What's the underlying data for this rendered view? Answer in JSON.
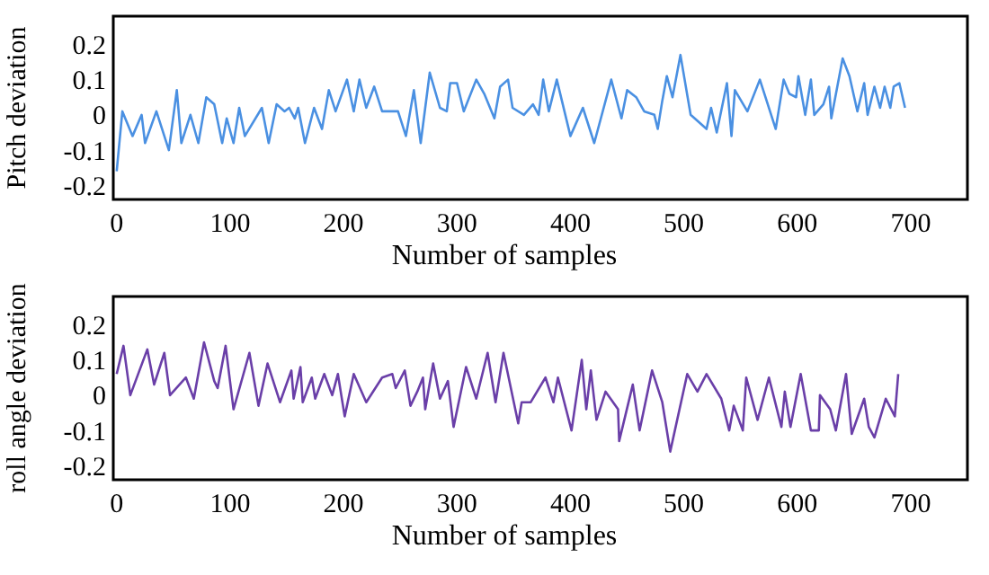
{
  "chart_data": [
    {
      "type": "line",
      "xlabel": "Number of samples",
      "ylabel": "Pitch deviation",
      "xlim": [
        -3,
        750
      ],
      "ylim": [
        -0.24,
        0.28
      ],
      "xticks": [
        0,
        100,
        200,
        300,
        400,
        500,
        600,
        700
      ],
      "yticks": [
        {
          "value": 0.2,
          "label": "0.2"
        },
        {
          "value": 0.1,
          "label": "0.1"
        },
        0,
        {
          "value": -0.1,
          "label": "-0.1"
        },
        {
          "value": -0.2,
          "label": "-0.2"
        }
      ],
      "grid": false,
      "series": [
        {
          "color": "#4a90e2",
          "x": [
            0,
            5,
            14,
            22,
            25,
            35,
            46,
            53,
            57,
            65,
            72,
            79,
            86,
            93,
            97,
            103,
            108,
            113,
            128,
            134,
            141,
            148,
            152,
            157,
            160,
            166,
            174,
            181,
            187,
            193,
            203,
            209,
            214,
            220,
            227,
            234,
            248,
            255,
            262,
            268,
            276,
            285,
            291,
            294,
            300,
            306,
            317,
            324,
            333,
            338,
            345,
            349,
            359,
            367,
            372,
            376,
            381,
            388,
            400,
            411,
            421,
            436,
            445,
            450,
            458,
            465,
            474,
            477,
            481,
            485,
            490,
            497,
            506,
            520,
            524,
            529,
            538,
            542,
            545,
            556,
            567,
            581,
            588,
            593,
            599,
            601,
            607,
            612,
            615,
            623,
            628,
            630,
            640,
            646,
            653,
            659,
            662,
            668,
            673,
            677,
            682,
            685,
            690,
            695
          ],
          "values": [
            -0.16,
            0.01,
            -0.06,
            0,
            -0.08,
            0.01,
            -0.1,
            0.07,
            -0.08,
            0,
            -0.08,
            0.05,
            0.03,
            -0.08,
            -0.01,
            -0.08,
            0.02,
            -0.06,
            0.02,
            -0.08,
            0.03,
            0.01,
            0.02,
            -0.01,
            0.02,
            -0.08,
            0.02,
            -0.04,
            0.07,
            0.01,
            0.1,
            0.01,
            0.1,
            0.02,
            0.08,
            0.01,
            0.01,
            -0.06,
            0.07,
            -0.08,
            0.12,
            0.02,
            0.01,
            0.09,
            0.09,
            0.01,
            0.1,
            0.06,
            -0.01,
            0.08,
            0.1,
            0.02,
            0,
            0.03,
            0,
            0.1,
            0.01,
            0.1,
            -0.06,
            0.02,
            -0.08,
            0.1,
            -0.01,
            0.07,
            0.05,
            0.01,
            0,
            -0.04,
            0.04,
            0.11,
            0.05,
            0.17,
            0,
            -0.04,
            0.02,
            -0.05,
            0.09,
            -0.06,
            0.07,
            0.01,
            0.1,
            -0.04,
            0.1,
            0.06,
            0.05,
            0.11,
            0,
            0.1,
            0,
            0.03,
            0.08,
            -0.01,
            0.16,
            0.11,
            0.01,
            0.09,
            0,
            0.08,
            0.02,
            0.08,
            0.02,
            0.08,
            0.09,
            0.02
          ]
        }
      ]
    },
    {
      "type": "line",
      "xlabel": "Number of samples",
      "ylabel": "roll angle deviation",
      "xlim": [
        -3,
        750
      ],
      "ylim": [
        -0.24,
        0.28
      ],
      "xticks": [
        0,
        100,
        200,
        300,
        400,
        500,
        600,
        700
      ],
      "yticks": [
        {
          "value": 0.2,
          "label": "0.2"
        },
        {
          "value": 0.1,
          "label": "0.1"
        },
        0,
        {
          "value": -0.1,
          "label": "-0.1"
        },
        {
          "value": -0.2,
          "label": "-0.2"
        }
      ],
      "grid": false,
      "series": [
        {
          "color": "#6a3fa8",
          "x": [
            0,
            6,
            12,
            27,
            33,
            42,
            47,
            61,
            68,
            77,
            86,
            89,
            96,
            103,
            117,
            125,
            133,
            144,
            154,
            156,
            162,
            164,
            172,
            175,
            183,
            190,
            195,
            201,
            209,
            220,
            234,
            243,
            246,
            254,
            259,
            265,
            270,
            272,
            279,
            285,
            292,
            297,
            308,
            317,
            327,
            334,
            341,
            354,
            357,
            365,
            378,
            385,
            389,
            401,
            410,
            414,
            418,
            423,
            431,
            442,
            443,
            455,
            461,
            472,
            481,
            488,
            503,
            512,
            520,
            533,
            540,
            544,
            552,
            555,
            565,
            575,
            586,
            589,
            594,
            603,
            612,
            619,
            620,
            629,
            634,
            643,
            648,
            659,
            663,
            668,
            678,
            686,
            689
          ],
          "values": [
            0.06,
            0.14,
            0,
            0.13,
            0.03,
            0.12,
            0,
            0.05,
            -0.01,
            0.15,
            0.04,
            0.02,
            0.14,
            -0.04,
            0.12,
            -0.03,
            0.09,
            -0.02,
            0.07,
            -0.01,
            0.08,
            -0.02,
            0.05,
            -0.01,
            0.06,
            0,
            0.06,
            -0.06,
            0.06,
            -0.02,
            0.05,
            0.06,
            0.02,
            0.07,
            -0.03,
            0.01,
            0.05,
            -0.04,
            0.09,
            -0.01,
            0.04,
            -0.09,
            0.08,
            -0.01,
            0.12,
            -0.02,
            0.12,
            -0.08,
            -0.02,
            -0.02,
            0.05,
            -0.02,
            0.05,
            -0.1,
            0.1,
            -0.04,
            0.07,
            -0.07,
            0.01,
            -0.04,
            -0.13,
            0.03,
            -0.1,
            0.07,
            -0.02,
            -0.16,
            0.06,
            0.01,
            0.06,
            -0.01,
            -0.1,
            -0.03,
            -0.1,
            0.05,
            -0.07,
            0.05,
            -0.09,
            0.01,
            -0.09,
            0.06,
            -0.1,
            -0.1,
            0,
            -0.04,
            -0.1,
            0.06,
            -0.11,
            -0.01,
            -0.09,
            -0.12,
            -0.01,
            -0.06,
            0.06
          ]
        }
      ]
    }
  ]
}
